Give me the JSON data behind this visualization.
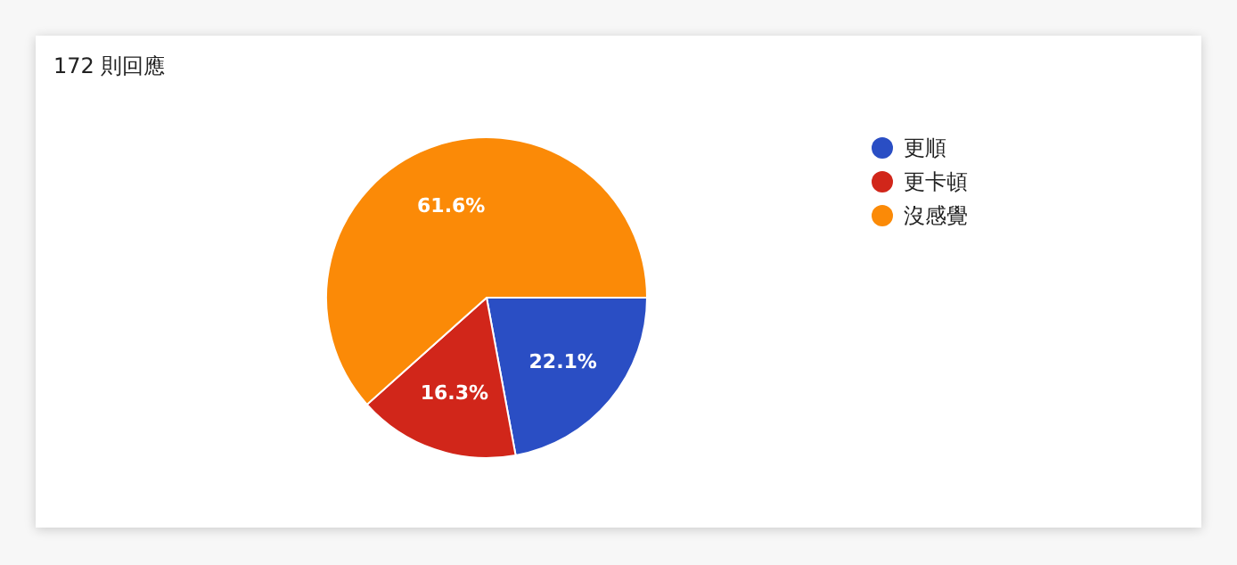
{
  "chart_data": {
    "type": "pie",
    "title": "172 則回應",
    "categories": [
      "更順",
      "更卡頓",
      "沒感覺"
    ],
    "values": [
      22.1,
      16.3,
      61.6
    ],
    "colors": [
      "#2a4ec4",
      "#d1261a",
      "#fb8a07"
    ],
    "value_labels": [
      "22.1%",
      "16.3%",
      "61.6%"
    ],
    "legend": "right"
  }
}
